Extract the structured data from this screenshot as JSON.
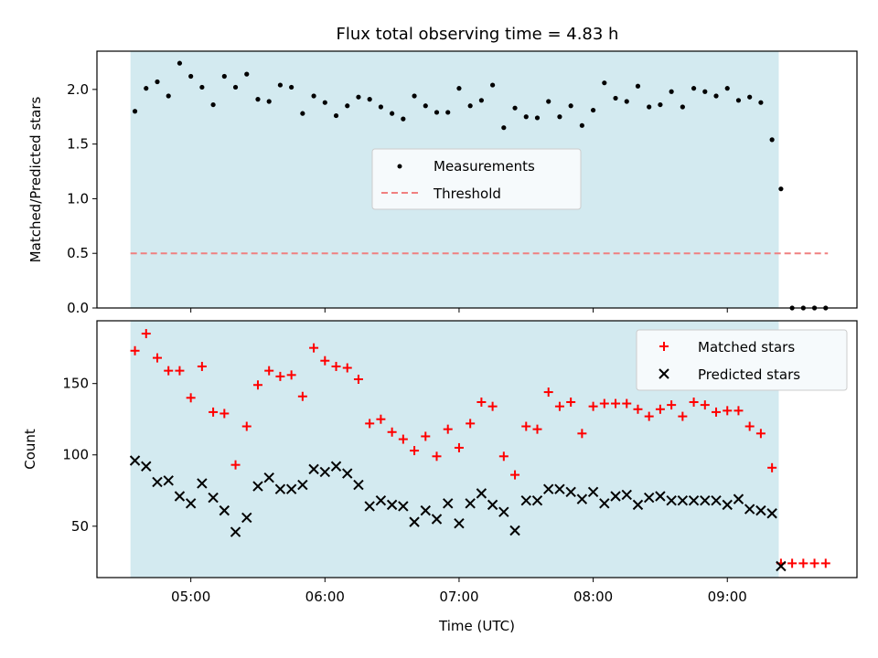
{
  "chart_data": [
    {
      "type": "scatter",
      "title": "Flux total observing time = 4.83 h",
      "xlabel": "",
      "ylabel": "Matched/Predicted stars",
      "ylim": [
        0,
        2.35
      ],
      "yticks": [
        "0.0",
        "0.5",
        "1.0",
        "1.5",
        "2.0"
      ],
      "observing_window": [
        "04:33",
        "09:23"
      ],
      "legend": {
        "placement": "center",
        "entries": [
          "Measurements",
          "Threshold"
        ]
      },
      "threshold": {
        "name": "Threshold",
        "value": 0.5,
        "x_range": [
          "04:33",
          "09:45"
        ],
        "color": "#f08080"
      },
      "series": [
        {
          "name": "Measurements",
          "color": "#000000",
          "marker": "dot",
          "x": [
            "04:35",
            "04:40",
            "04:45",
            "04:50",
            "04:55",
            "05:00",
            "05:05",
            "05:10",
            "05:15",
            "05:20",
            "05:25",
            "05:30",
            "05:35",
            "05:40",
            "05:45",
            "05:50",
            "05:55",
            "06:00",
            "06:05",
            "06:10",
            "06:15",
            "06:20",
            "06:25",
            "06:30",
            "06:35",
            "06:40",
            "06:45",
            "06:50",
            "06:55",
            "07:00",
            "07:05",
            "07:10",
            "07:15",
            "07:20",
            "07:25",
            "07:30",
            "07:35",
            "07:40",
            "07:45",
            "07:50",
            "07:55",
            "08:00",
            "08:05",
            "08:10",
            "08:15",
            "08:20",
            "08:25",
            "08:30",
            "08:35",
            "08:40",
            "08:45",
            "08:50",
            "08:55",
            "09:00",
            "09:05",
            "09:10",
            "09:15",
            "09:20",
            "09:24",
            "09:29",
            "09:34",
            "09:39",
            "09:44"
          ],
          "y": [
            1.8,
            2.01,
            2.07,
            1.94,
            2.24,
            2.12,
            2.02,
            1.86,
            2.12,
            2.02,
            2.14,
            1.91,
            1.89,
            2.04,
            2.02,
            1.78,
            1.94,
            1.88,
            1.76,
            1.85,
            1.93,
            1.91,
            1.84,
            1.78,
            1.73,
            1.94,
            1.85,
            1.79,
            1.79,
            2.01,
            1.85,
            1.9,
            2.04,
            1.65,
            1.83,
            1.75,
            1.74,
            1.89,
            1.75,
            1.85,
            1.67,
            1.81,
            2.06,
            1.92,
            1.89,
            2.03,
            1.84,
            1.86,
            1.98,
            1.84,
            2.01,
            1.98,
            1.94,
            2.01,
            1.9,
            1.93,
            1.88,
            1.54,
            1.09,
            0.0,
            0.0,
            0.0,
            0.0
          ]
        }
      ]
    },
    {
      "type": "scatter",
      "title": "",
      "xlabel": "Time (UTC)",
      "ylabel": "Count",
      "ylim": [
        14,
        194
      ],
      "yticks": [
        "50",
        "100",
        "150"
      ],
      "xticks": [
        "05:00",
        "06:00",
        "07:00",
        "08:00",
        "09:00"
      ],
      "xlim": [
        "04:18",
        "09:58"
      ],
      "observing_window": [
        "04:33",
        "09:23"
      ],
      "legend": {
        "placement": "top-right",
        "entries": [
          "Matched stars",
          "Predicted stars"
        ]
      },
      "series": [
        {
          "name": "Matched stars",
          "color": "#ff0000",
          "marker": "plus",
          "x": [
            "04:35",
            "04:40",
            "04:45",
            "04:50",
            "04:55",
            "05:00",
            "05:05",
            "05:10",
            "05:15",
            "05:20",
            "05:25",
            "05:30",
            "05:35",
            "05:40",
            "05:45",
            "05:50",
            "05:55",
            "06:00",
            "06:05",
            "06:10",
            "06:15",
            "06:20",
            "06:25",
            "06:30",
            "06:35",
            "06:40",
            "06:45",
            "06:50",
            "06:55",
            "07:00",
            "07:05",
            "07:10",
            "07:15",
            "07:20",
            "07:25",
            "07:30",
            "07:35",
            "07:40",
            "07:45",
            "07:50",
            "07:55",
            "08:00",
            "08:05",
            "08:10",
            "08:15",
            "08:20",
            "08:25",
            "08:30",
            "08:35",
            "08:40",
            "08:45",
            "08:50",
            "08:55",
            "09:00",
            "09:05",
            "09:10",
            "09:15",
            "09:20",
            "09:24",
            "09:29",
            "09:34",
            "09:39",
            "09:44"
          ],
          "y": [
            173,
            185,
            168,
            159,
            159,
            140,
            162,
            130,
            129,
            93,
            120,
            149,
            159,
            155,
            156,
            141,
            175,
            166,
            162,
            161,
            153,
            122,
            125,
            116,
            111,
            103,
            113,
            99,
            118,
            105,
            122,
            137,
            134,
            99,
            86,
            120,
            118,
            144,
            134,
            137,
            115,
            134,
            136,
            136,
            136,
            132,
            127,
            132,
            135,
            127,
            137,
            135,
            130,
            131,
            131,
            120,
            115,
            91,
            24,
            24,
            24,
            24,
            24
          ]
        },
        {
          "name": "Predicted stars",
          "color": "#000000",
          "marker": "x",
          "x": [
            "04:35",
            "04:40",
            "04:45",
            "04:50",
            "04:55",
            "05:00",
            "05:05",
            "05:10",
            "05:15",
            "05:20",
            "05:25",
            "05:30",
            "05:35",
            "05:40",
            "05:45",
            "05:50",
            "05:55",
            "06:00",
            "06:05",
            "06:10",
            "06:15",
            "06:20",
            "06:25",
            "06:30",
            "06:35",
            "06:40",
            "06:45",
            "06:50",
            "06:55",
            "07:00",
            "07:05",
            "07:10",
            "07:15",
            "07:20",
            "07:25",
            "07:30",
            "07:35",
            "07:40",
            "07:45",
            "07:50",
            "07:55",
            "08:00",
            "08:05",
            "08:10",
            "08:15",
            "08:20",
            "08:25",
            "08:30",
            "08:35",
            "08:40",
            "08:45",
            "08:50",
            "08:55",
            "09:00",
            "09:05",
            "09:10",
            "09:15",
            "09:20",
            "09:24"
          ],
          "y": [
            96,
            92,
            81,
            82,
            71,
            66,
            80,
            70,
            61,
            46,
            56,
            78,
            84,
            76,
            76,
            79,
            90,
            88,
            92,
            87,
            79,
            64,
            68,
            65,
            64,
            53,
            61,
            55,
            66,
            52,
            66,
            73,
            65,
            60,
            47,
            68,
            68,
            76,
            76,
            74,
            69,
            74,
            66,
            71,
            72,
            65,
            70,
            71,
            68,
            68,
            68,
            68,
            68,
            65,
            69,
            62,
            61,
            59,
            22
          ]
        }
      ]
    }
  ]
}
